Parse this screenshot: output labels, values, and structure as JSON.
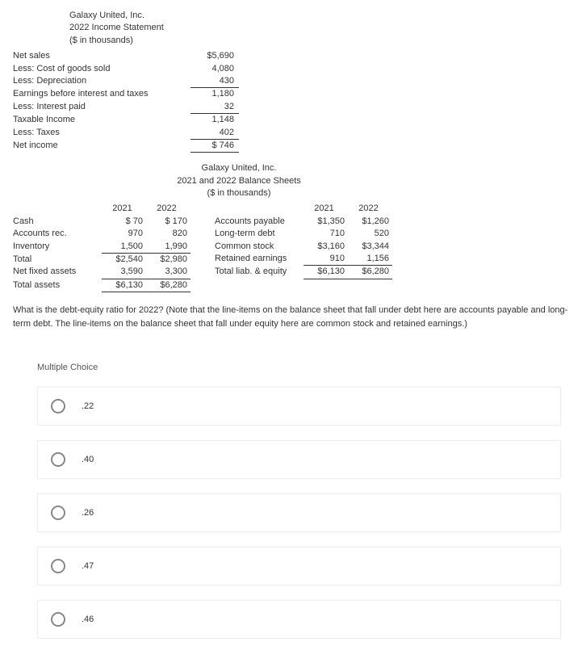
{
  "income_statement": {
    "header": [
      "Galaxy United, Inc.",
      "2022 Income Statement",
      "($ in thousands)"
    ],
    "rows": [
      {
        "label": "Net sales",
        "value": "$5,690",
        "underline": false,
        "dollar": true
      },
      {
        "label": "Less: Cost of goods sold",
        "value": "4,080",
        "underline": false
      },
      {
        "label": "Less: Depreciation",
        "value": "430",
        "underline": true
      },
      {
        "label": "Earnings before interest and taxes",
        "value": "1,180",
        "underline": false
      },
      {
        "label": "Less: Interest paid",
        "value": "32",
        "underline": true
      },
      {
        "label": "Taxable Income",
        "value": "1,148",
        "underline": false
      },
      {
        "label": "Less: Taxes",
        "value": "402",
        "underline": true
      },
      {
        "label": "Net income",
        "value": "$   746",
        "underline": true,
        "dollar": false
      }
    ]
  },
  "balance_sheet": {
    "header": [
      "Galaxy United, Inc.",
      "2021 and 2022 Balance Sheets",
      "($ in thousands)"
    ],
    "col_years": [
      "2021",
      "2022"
    ],
    "left_rows": [
      {
        "label": "Cash",
        "y1": "$   70",
        "y2": "$  170"
      },
      {
        "label": "Accounts rec.",
        "y1": "970",
        "y2": "820"
      },
      {
        "label": "Inventory",
        "y1": "1,500",
        "y2": "1,990",
        "underline": true
      },
      {
        "label": "Total",
        "y1": "$2,540",
        "y2": "$2,980"
      },
      {
        "label": "Net fixed assets",
        "y1": "3,590",
        "y2": "3,300",
        "underline": true
      },
      {
        "label": "Total assets",
        "y1": "$6,130",
        "y2": "$6,280",
        "underline": true
      }
    ],
    "right_rows": [
      {
        "label": "Accounts payable",
        "y1": "$1,350",
        "y2": "$1,260"
      },
      {
        "label": "Long-term debt",
        "y1": "710",
        "y2": "520"
      },
      {
        "label": "Common stock",
        "y1": "$3,160",
        "y2": "$3,344"
      },
      {
        "label": "Retained earnings",
        "y1": "910",
        "y2": "1,156",
        "underline": true
      },
      {
        "label": "",
        "y1": "",
        "y2": ""
      },
      {
        "label": "Total liab. & equity",
        "y1": "$6,130",
        "y2": "$6,280",
        "underline": true
      }
    ]
  },
  "question": "What is the debt-equity ratio for 2022? (Note that the line-items on the balance sheet that fall under debt here are accounts payable and long-term debt. The line-items on the balance sheet that fall under equity here are common stock and retained earnings.)",
  "mc_label": "Multiple Choice",
  "choices": [
    ".22",
    ".40",
    ".26",
    ".47",
    ".46"
  ]
}
